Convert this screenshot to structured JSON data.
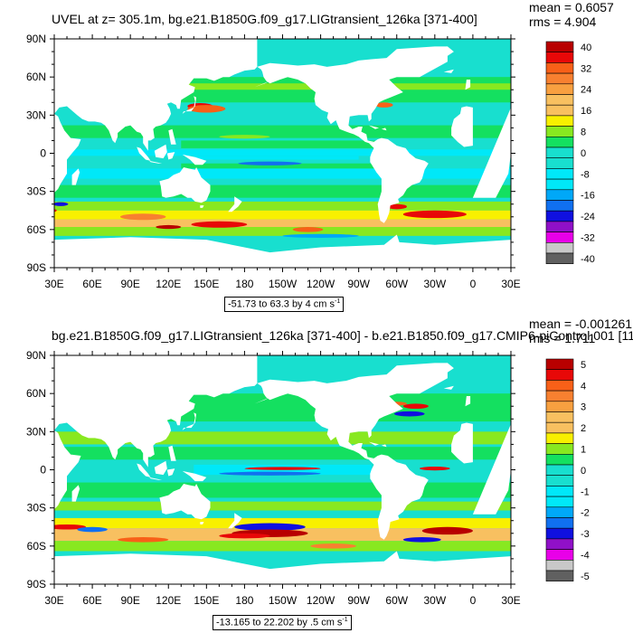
{
  "colors": {
    "land": "#ffffff",
    "ocean_base": "#18dfcf",
    "palette": [
      "#606060",
      "#c8c8c8",
      "#e800e8",
      "#9010c8",
      "#1010e0",
      "#1070f0",
      "#00a8f8",
      "#00e8f8",
      "#18dfcf",
      "#14e060",
      "#88e820",
      "#f8f000",
      "#f8c060",
      "#f8a040",
      "#f88030",
      "#f86018",
      "#e80808",
      "#b80000"
    ]
  },
  "panels": [
    {
      "id": "top",
      "title": "UVEL at z= 305.1m, bg.e21.B1850G.f09_g17.LIGtransient_126ka [371-400]",
      "mean_label": "mean = 0.6057",
      "rms_label": "rms = 4.904",
      "range_text": "-51.73 to 63.3 by 4 cm s",
      "range_sup": "-1",
      "x_ticks": [
        "30E",
        "60E",
        "90E",
        "120E",
        "150E",
        "180",
        "150W",
        "120W",
        "90W",
        "60W",
        "30W",
        "0",
        "30E"
      ],
      "y_ticks": [
        "90N",
        "60N",
        "30N",
        "0",
        "30S",
        "60S",
        "90S"
      ],
      "colorbar_labels": [
        "40",
        "32",
        "24",
        "16",
        "8",
        "0",
        "-8",
        "-16",
        "-24",
        "-32",
        "-40"
      ]
    },
    {
      "id": "bottom",
      "title": "bg.e21.B1850G.f09_g17.LIGtransient_126ka [371-400] - b.e21.B1850.f09_g17.CMIP6-piControl.001 [11",
      "mean_label": "mean = -0.001261",
      "rms_label": "rms = 1.711",
      "range_text": "-13.165 to 22.202 by .5 cm s",
      "range_sup": "-1",
      "x_ticks": [
        "30E",
        "60E",
        "90E",
        "120E",
        "150E",
        "180",
        "150W",
        "120W",
        "90W",
        "60W",
        "30W",
        "0",
        "30E"
      ],
      "y_ticks": [
        "90N",
        "60N",
        "30N",
        "0",
        "30S",
        "60S",
        "90S"
      ],
      "colorbar_labels": [
        "5",
        "4",
        "3",
        "2",
        "1",
        "0",
        "-1",
        "-2",
        "-3",
        "-4",
        "-5"
      ]
    }
  ],
  "chart_data": [
    {
      "type": "heatmap",
      "title": "UVEL at z= 305.1m, bg.e21.B1850G.f09_g17.LIGtransient_126ka [371-400]",
      "variable": "UVEL",
      "depth": "z= 305.1m",
      "mean": 0.6057,
      "rms": 4.904,
      "data_min": -51.73,
      "data_max": 63.3,
      "contour_interval": 4,
      "units": "cm s-1",
      "xlim": [
        "30E",
        "30E"
      ],
      "ylim": [
        "90S",
        "90N"
      ],
      "colorbar_levels": [
        -40,
        -36,
        -32,
        -28,
        -24,
        -20,
        -16,
        -12,
        -8,
        -4,
        0,
        4,
        8,
        12,
        16,
        20,
        24,
        28,
        32,
        36,
        40
      ]
    },
    {
      "type": "heatmap",
      "title": "bg.e21.B1850G.f09_g17.LIGtransient_126ka [371-400] - b.e21.B1850.f09_g17.CMIP6-piControl.001 [11",
      "mean": -0.001261,
      "rms": 1.711,
      "data_min": -13.165,
      "data_max": 22.202,
      "contour_interval": 0.5,
      "units": "cm s-1",
      "xlim": [
        "30E",
        "30E"
      ],
      "ylim": [
        "90S",
        "90N"
      ],
      "colorbar_levels": [
        -5,
        -4.5,
        -4,
        -3.5,
        -3,
        -2.5,
        -2,
        -1.5,
        -1,
        -0.5,
        0,
        0.5,
        1,
        1.5,
        2,
        2.5,
        3,
        3.5,
        4,
        4.5,
        5
      ]
    }
  ]
}
